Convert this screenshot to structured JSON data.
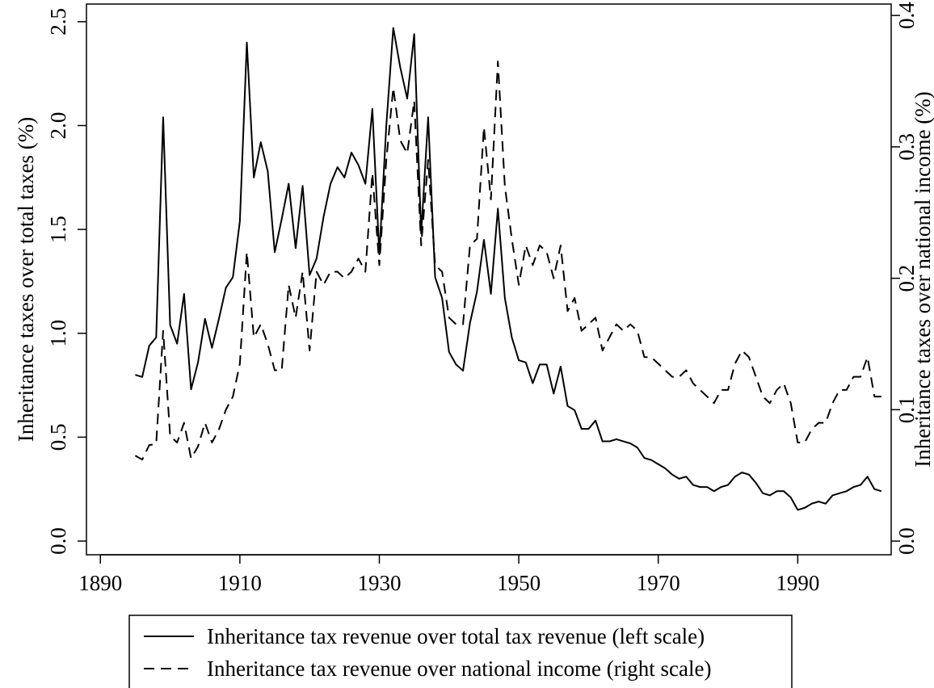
{
  "chart_data": {
    "type": "line",
    "x": [
      1895,
      1896,
      1897,
      1898,
      1899,
      1900,
      1901,
      1902,
      1903,
      1904,
      1905,
      1906,
      1907,
      1908,
      1909,
      1910,
      1911,
      1912,
      1913,
      1914,
      1915,
      1916,
      1917,
      1918,
      1919,
      1920,
      1921,
      1922,
      1923,
      1924,
      1925,
      1926,
      1927,
      1928,
      1929,
      1930,
      1931,
      1932,
      1933,
      1934,
      1935,
      1936,
      1937,
      1938,
      1939,
      1940,
      1941,
      1942,
      1943,
      1944,
      1945,
      1946,
      1947,
      1948,
      1949,
      1950,
      1951,
      1952,
      1953,
      1954,
      1955,
      1956,
      1957,
      1958,
      1959,
      1960,
      1961,
      1962,
      1963,
      1964,
      1965,
      1966,
      1967,
      1968,
      1969,
      1970,
      1971,
      1972,
      1973,
      1974,
      1975,
      1976,
      1977,
      1978,
      1979,
      1980,
      1981,
      1982,
      1983,
      1984,
      1985,
      1986,
      1987,
      1988,
      1989,
      1990,
      1991,
      1992,
      1993,
      1994,
      1995,
      1996,
      1997,
      1998,
      1999,
      2000,
      2001,
      2002
    ],
    "series": [
      {
        "name": "Inheritance tax revenue over total tax revenue (left scale)",
        "color": "#000000",
        "dash": "solid",
        "axis": "y",
        "values": [
          0.8,
          0.79,
          0.94,
          0.98,
          2.04,
          1.04,
          0.95,
          1.19,
          0.73,
          0.86,
          1.07,
          0.93,
          1.07,
          1.22,
          1.27,
          1.54,
          2.4,
          1.75,
          1.92,
          1.78,
          1.39,
          1.55,
          1.72,
          1.41,
          1.71,
          1.28,
          1.36,
          1.56,
          1.72,
          1.8,
          1.75,
          1.87,
          1.81,
          1.72,
          2.08,
          1.38,
          2.0,
          2.47,
          2.28,
          2.13,
          2.44,
          1.48,
          2.04,
          1.27,
          1.17,
          0.91,
          0.85,
          0.82,
          1.05,
          1.2,
          1.45,
          1.19,
          1.6,
          1.17,
          0.98,
          0.87,
          0.86,
          0.76,
          0.85,
          0.85,
          0.71,
          0.84,
          0.65,
          0.63,
          0.54,
          0.54,
          0.58,
          0.48,
          0.48,
          0.49,
          0.48,
          0.47,
          0.45,
          0.4,
          0.39,
          0.37,
          0.35,
          0.32,
          0.3,
          0.31,
          0.27,
          0.26,
          0.26,
          0.24,
          0.26,
          0.27,
          0.31,
          0.33,
          0.32,
          0.28,
          0.23,
          0.22,
          0.24,
          0.24,
          0.21,
          0.15,
          0.16,
          0.18,
          0.19,
          0.18,
          0.22,
          0.23,
          0.24,
          0.26,
          0.27,
          0.31,
          0.25,
          0.24
        ]
      },
      {
        "name": "Inheritance tax revenue over national income (right scale)",
        "color": "#000000",
        "dash": "dashed",
        "axis": "y2",
        "values": [
          0.065,
          0.062,
          0.073,
          0.074,
          0.16,
          0.08,
          0.075,
          0.09,
          0.063,
          0.072,
          0.09,
          0.075,
          0.085,
          0.1,
          0.11,
          0.135,
          0.22,
          0.155,
          0.165,
          0.15,
          0.13,
          0.13,
          0.195,
          0.17,
          0.205,
          0.145,
          0.205,
          0.195,
          0.205,
          0.205,
          0.2,
          0.205,
          0.215,
          0.205,
          0.28,
          0.21,
          0.29,
          0.345,
          0.305,
          0.295,
          0.335,
          0.225,
          0.29,
          0.21,
          0.205,
          0.17,
          0.165,
          0.165,
          0.225,
          0.23,
          0.315,
          0.26,
          0.365,
          0.27,
          0.23,
          0.195,
          0.225,
          0.21,
          0.225,
          0.22,
          0.2,
          0.225,
          0.175,
          0.185,
          0.16,
          0.165,
          0.17,
          0.145,
          0.155,
          0.165,
          0.16,
          0.165,
          0.16,
          0.14,
          0.14,
          0.135,
          0.13,
          0.125,
          0.125,
          0.13,
          0.12,
          0.115,
          0.11,
          0.105,
          0.115,
          0.115,
          0.135,
          0.145,
          0.14,
          0.125,
          0.11,
          0.105,
          0.115,
          0.12,
          0.105,
          0.075,
          0.075,
          0.085,
          0.09,
          0.09,
          0.105,
          0.115,
          0.115,
          0.125,
          0.125,
          0.14,
          0.11,
          0.11
        ]
      }
    ],
    "y_label": "Inheritance taxes over total taxes (%)",
    "y2_label": "Inheritance taxes over national income (%)",
    "xlim": [
      1888,
      2003.4
    ],
    "xticks": [
      1890,
      1910,
      1930,
      1950,
      1970,
      1990
    ],
    "ylim": [
      -0.066,
      2.585
    ],
    "yticks": [
      {
        "value": 0,
        "label": "0.0"
      },
      0.5,
      {
        "value": 1,
        "label": "1.0"
      },
      1.5,
      {
        "value": 2,
        "label": "2.0"
      },
      2.5
    ],
    "y2lim": [
      -0.0104,
      0.4087
    ],
    "y2ticks": [
      {
        "value": 0,
        "label": "0.0"
      },
      0.1,
      0.2,
      0.3,
      0.4
    ],
    "legend": "bottom"
  }
}
